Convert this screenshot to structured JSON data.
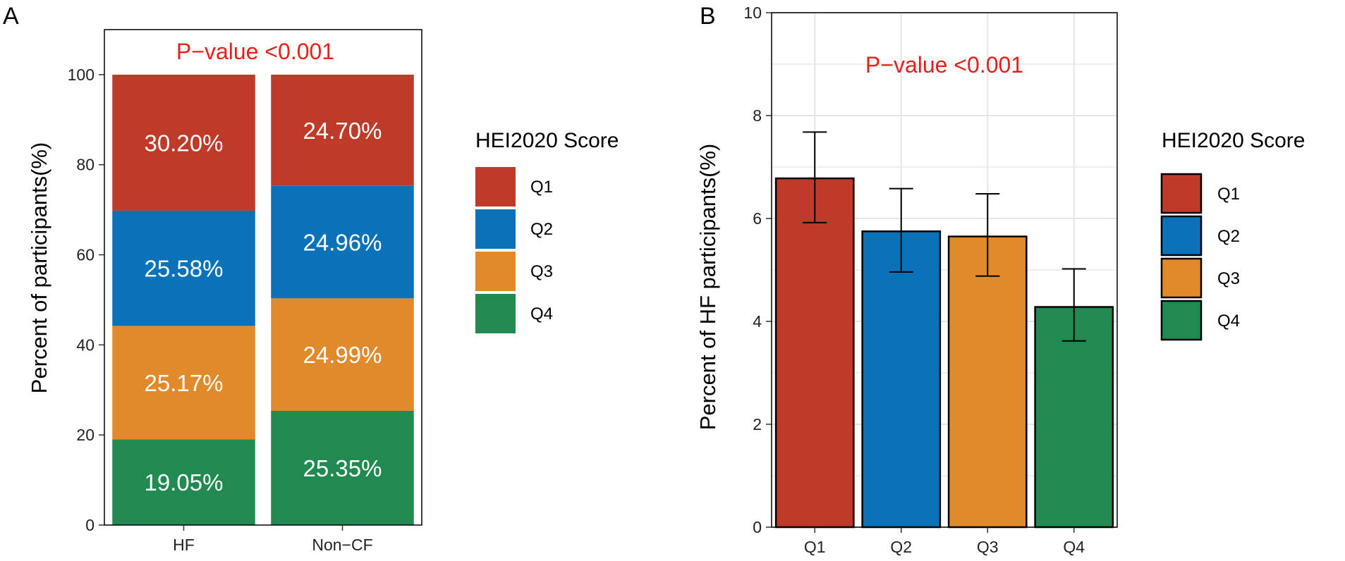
{
  "chart_data": [
    {
      "panel": "A",
      "type": "bar",
      "stacked": true,
      "categories": [
        "HF",
        "Non−CF"
      ],
      "series": [
        {
          "name": "Q1",
          "values": [
            30.2,
            24.7
          ],
          "labels": [
            "30.20%",
            "24.70%"
          ]
        },
        {
          "name": "Q2",
          "values": [
            25.58,
            24.96
          ],
          "labels": [
            "25.58%",
            "24.96%"
          ]
        },
        {
          "name": "Q3",
          "values": [
            25.17,
            24.99
          ],
          "labels": [
            "25.17%",
            "24.99%"
          ]
        },
        {
          "name": "Q4",
          "values": [
            19.05,
            25.35
          ],
          "labels": [
            "19.05%",
            "25.35%"
          ]
        }
      ],
      "annotation": "P−value <0.001",
      "xlabel": "",
      "ylabel": "Percent of participants(%)",
      "ylim": [
        0,
        110
      ],
      "yticks": [
        0,
        20,
        40,
        60,
        80,
        100
      ],
      "legend": {
        "title": "HEI2020 Score",
        "entries": [
          "Q1",
          "Q2",
          "Q3",
          "Q4"
        ],
        "placement": "right"
      }
    },
    {
      "panel": "B",
      "type": "bar",
      "categories": [
        "Q1",
        "Q2",
        "Q3",
        "Q4"
      ],
      "values": [
        6.78,
        5.75,
        5.65,
        4.28
      ],
      "error_low": [
        5.92,
        4.96,
        4.88,
        3.62
      ],
      "error_high": [
        7.68,
        6.58,
        6.48,
        5.02
      ],
      "annotation": "P−value <0.001",
      "xlabel": "",
      "ylabel": "Percent of HF participants(%)",
      "ylim": [
        0,
        10
      ],
      "yticks": [
        0,
        2,
        4,
        6,
        8,
        10
      ],
      "grid": true,
      "legend": {
        "title": "HEI2020 Score",
        "entries": [
          "Q1",
          "Q2",
          "Q3",
          "Q4"
        ],
        "placement": "right"
      }
    }
  ],
  "colors": {
    "Q1": "#be3a29",
    "Q2": "#0a72b9",
    "Q3": "#e08a2c",
    "Q4": "#218a50",
    "pvalue": "#e8201c",
    "grid": "#e5e5e5"
  }
}
